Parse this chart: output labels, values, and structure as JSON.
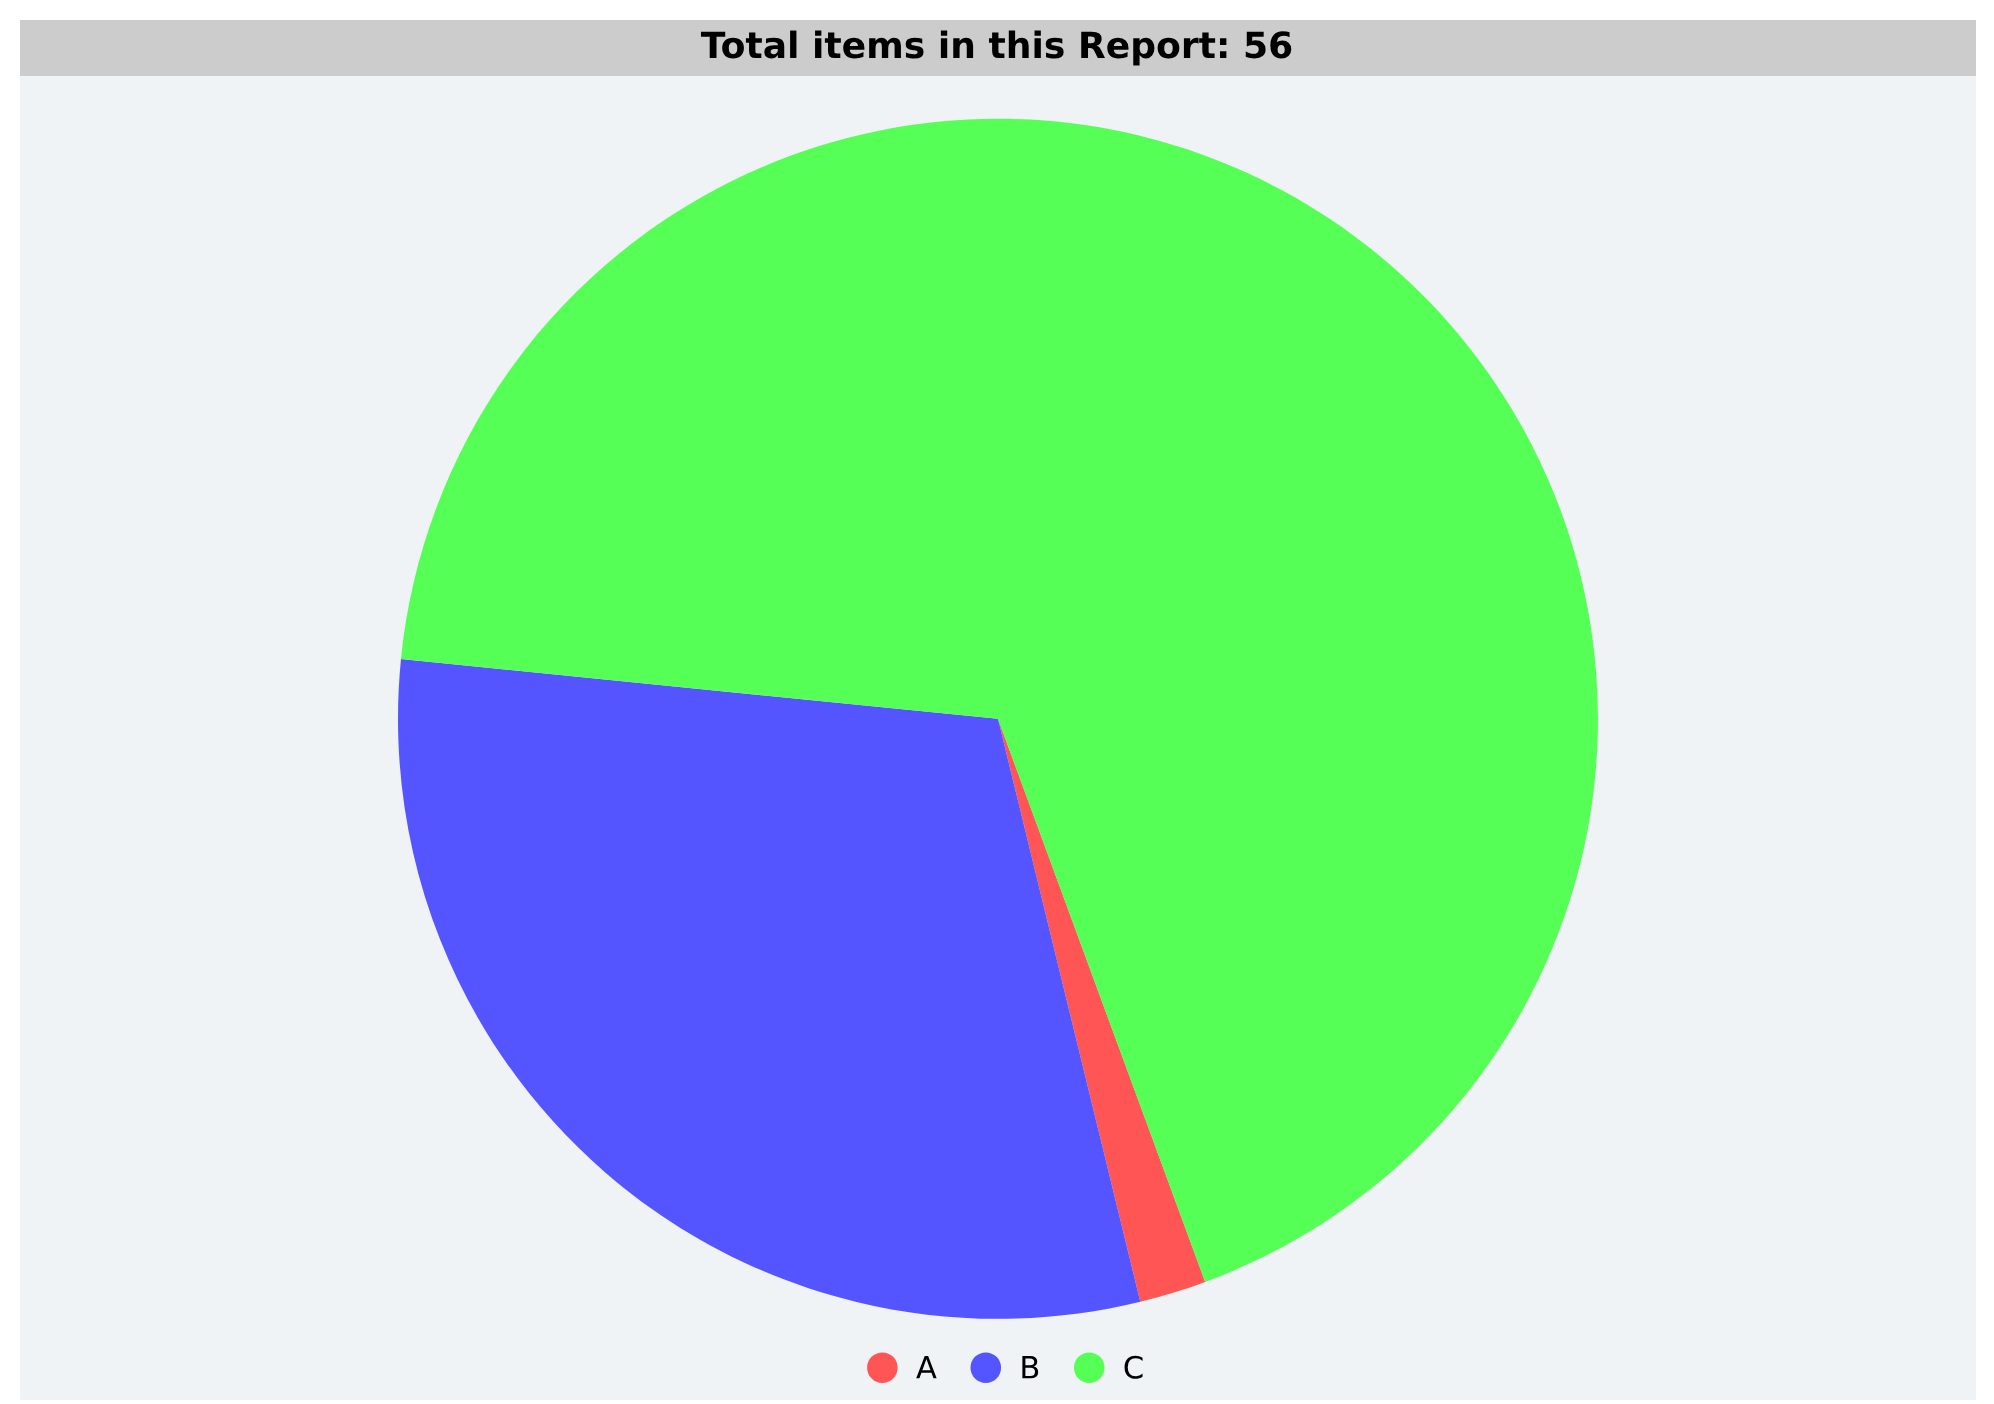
{
  "chart_data": {
    "type": "pie",
    "title": "Total items in this Report: 56",
    "categories": [
      "A",
      "B",
      "C"
    ],
    "values": [
      1.8,
      30.4,
      67.8
    ],
    "colors": [
      "#ff5555",
      "#5555ff",
      "#55ff55"
    ],
    "legend": "bottom"
  }
}
